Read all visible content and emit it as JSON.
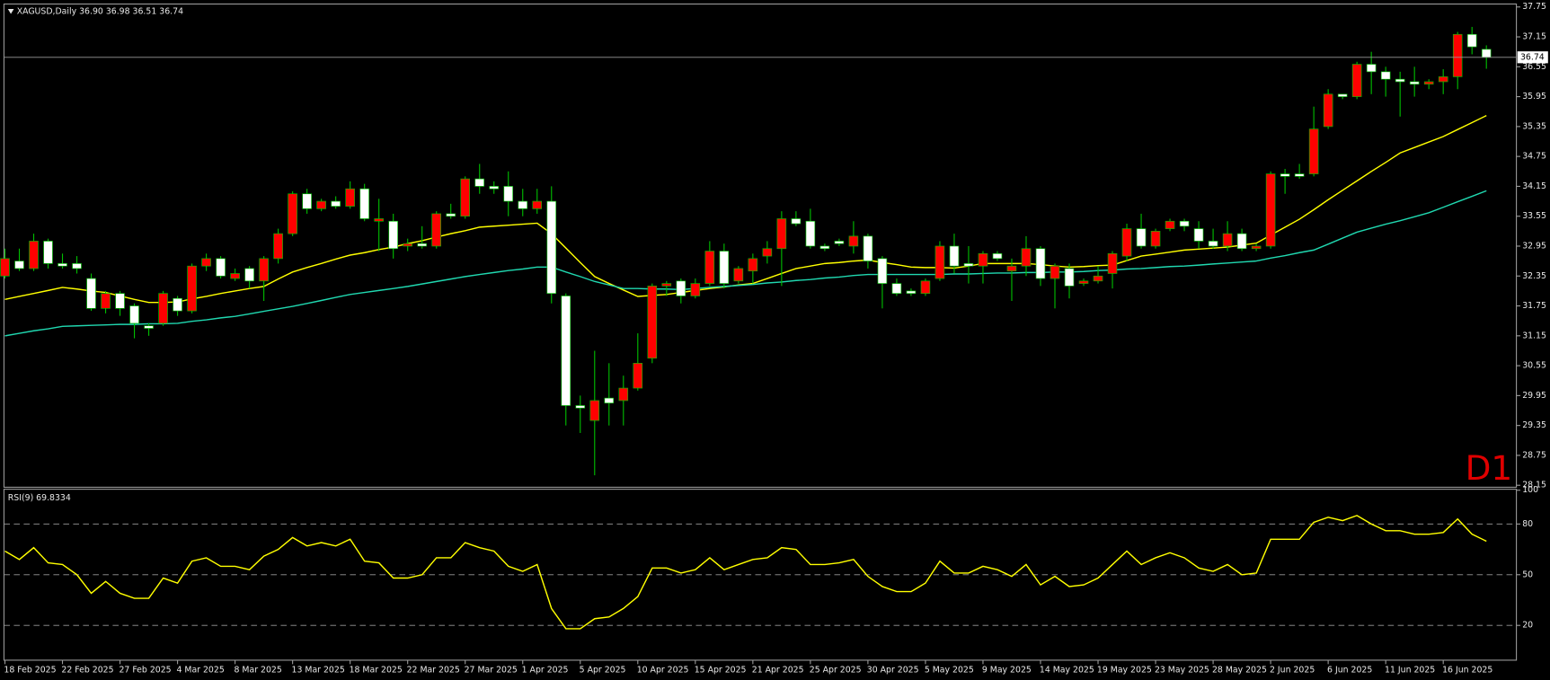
{
  "chart_data": [
    {
      "type": "candlestick",
      "title": "XAGUSD,Daily  36.90 36.98 36.51 36.74",
      "annotation": "D1",
      "up_color": "#ff0000",
      "down_color": "#ffffff",
      "wick_color": "#00c000",
      "categories": [
        "18 Feb 2025",
        null,
        null,
        null,
        "22 Feb 2025",
        null,
        null,
        null,
        "27 Feb 2025",
        null,
        null,
        null,
        "4 Mar 2025",
        null,
        null,
        null,
        "8 Mar 2025",
        null,
        null,
        null,
        "13 Mar 2025",
        null,
        null,
        null,
        "18 Mar 2025",
        null,
        null,
        null,
        "22 Mar 2025",
        null,
        null,
        null,
        "27 Mar 2025",
        null,
        null,
        null,
        "1 Apr 2025",
        null,
        null,
        null,
        "5 Apr 2025",
        null,
        null,
        null,
        "10 Apr 2025",
        null,
        null,
        null,
        "15 Apr 2025",
        null,
        null,
        null,
        "21 Apr 2025",
        null,
        null,
        null,
        "25 Apr 2025",
        null,
        null,
        null,
        "30 Apr 2025",
        null,
        null,
        null,
        "5 May 2025",
        null,
        null,
        null,
        "9 May 2025",
        null,
        null,
        null,
        "14 May 2025",
        null,
        null,
        null,
        "19 May 2025",
        null,
        null,
        null,
        "23 May 2025",
        null,
        null,
        null,
        "28 May 2025",
        null,
        null,
        null,
        "2 Jun 2025",
        null,
        null,
        null,
        "6 Jun 2025",
        null,
        null,
        null,
        "11 Jun 2025",
        null,
        null,
        null,
        "16 Jun 2025",
        null,
        null,
        null
      ],
      "open": [
        32.35,
        32.65,
        32.5,
        33.05,
        32.6,
        32.6,
        32.3,
        31.7,
        32.0,
        31.75,
        31.35,
        31.4,
        31.9,
        31.65,
        32.55,
        32.7,
        32.3,
        32.5,
        32.25,
        32.7,
        33.2,
        34.0,
        33.7,
        33.85,
        33.75,
        34.1,
        33.45,
        33.45,
        32.95,
        33.0,
        32.95,
        33.6,
        33.55,
        34.3,
        34.15,
        34.15,
        33.85,
        33.7,
        33.85,
        31.95,
        29.75,
        29.45,
        29.9,
        29.85,
        30.1,
        30.7,
        32.15,
        32.25,
        31.95,
        32.2,
        32.85,
        32.25,
        32.45,
        32.75,
        32.9,
        33.5,
        33.45,
        32.95,
        33.05,
        32.95,
        33.15,
        32.7,
        32.2,
        32.05,
        32.0,
        32.3,
        32.95,
        32.6,
        32.55,
        32.8,
        32.45,
        32.55,
        32.9,
        32.3,
        32.5,
        32.2,
        32.25,
        32.4,
        32.75,
        33.3,
        32.95,
        33.3,
        33.45,
        33.3,
        33.05,
        32.95,
        33.2,
        32.9,
        32.95,
        34.4,
        34.4,
        34.4,
        35.35,
        36.0,
        35.95,
        36.6,
        36.45,
        36.3,
        36.25,
        36.2,
        36.25,
        36.35,
        37.2,
        36.9
      ],
      "high": [
        32.9,
        32.9,
        33.2,
        33.1,
        32.8,
        32.75,
        32.4,
        32.05,
        32.05,
        31.8,
        31.4,
        32.05,
        31.95,
        32.6,
        32.8,
        32.75,
        32.5,
        32.55,
        32.75,
        33.3,
        34.05,
        34.1,
        33.9,
        33.95,
        34.25,
        34.2,
        33.9,
        33.6,
        33.1,
        33.35,
        33.65,
        33.8,
        34.35,
        34.6,
        34.25,
        34.45,
        34.1,
        34.1,
        34.15,
        32.0,
        29.95,
        30.85,
        30.6,
        30.35,
        31.2,
        32.2,
        32.25,
        32.3,
        32.3,
        33.05,
        33.0,
        32.55,
        32.8,
        33.05,
        33.65,
        33.65,
        33.7,
        33.0,
        33.1,
        33.45,
        33.2,
        32.75,
        32.3,
        32.1,
        32.3,
        33.05,
        33.2,
        32.95,
        32.85,
        32.85,
        32.7,
        33.15,
        32.95,
        32.6,
        32.6,
        32.3,
        32.55,
        32.85,
        33.4,
        33.6,
        33.3,
        33.5,
        33.5,
        33.45,
        33.3,
        33.45,
        33.3,
        33.0,
        34.45,
        34.5,
        34.6,
        35.75,
        36.1,
        36.0,
        36.65,
        36.85,
        36.55,
        36.45,
        36.55,
        36.3,
        36.5,
        37.25,
        37.35,
        36.98
      ],
      "low": [
        32.3,
        32.45,
        32.45,
        32.5,
        32.5,
        32.4,
        31.65,
        31.6,
        31.55,
        31.1,
        31.15,
        31.35,
        31.55,
        31.6,
        32.45,
        32.3,
        32.25,
        32.1,
        31.85,
        32.6,
        33.15,
        33.6,
        33.65,
        33.7,
        33.7,
        33.45,
        32.85,
        32.7,
        32.85,
        32.9,
        32.9,
        33.5,
        33.5,
        34.0,
        34.0,
        33.55,
        33.55,
        33.6,
        31.8,
        29.35,
        29.2,
        28.35,
        29.35,
        29.35,
        30.05,
        30.6,
        31.95,
        31.8,
        31.9,
        32.15,
        32.1,
        32.2,
        32.2,
        32.6,
        32.15,
        33.35,
        32.9,
        32.85,
        32.95,
        32.8,
        32.5,
        31.7,
        31.95,
        31.95,
        31.95,
        32.25,
        32.4,
        32.2,
        32.2,
        32.65,
        31.85,
        32.35,
        32.15,
        31.7,
        31.9,
        32.15,
        32.2,
        32.1,
        32.65,
        32.9,
        32.9,
        33.25,
        33.25,
        32.9,
        32.9,
        32.85,
        32.85,
        32.85,
        32.9,
        34.0,
        34.3,
        34.35,
        35.3,
        35.9,
        35.9,
        36.0,
        35.95,
        35.55,
        35.95,
        36.1,
        36.0,
        36.1,
        36.8,
        36.51
      ],
      "close": [
        32.7,
        32.5,
        33.05,
        32.6,
        32.55,
        32.5,
        31.7,
        32.0,
        31.7,
        31.4,
        31.3,
        32.0,
        31.65,
        32.55,
        32.7,
        32.35,
        32.4,
        32.25,
        32.7,
        33.2,
        34.0,
        33.7,
        33.85,
        33.75,
        34.1,
        33.5,
        33.5,
        32.9,
        33.0,
        32.95,
        33.6,
        33.55,
        34.3,
        34.15,
        34.1,
        33.85,
        33.7,
        33.85,
        32.0,
        29.75,
        29.7,
        29.85,
        29.8,
        30.1,
        30.6,
        32.15,
        32.2,
        31.95,
        32.2,
        32.85,
        32.2,
        32.5,
        32.7,
        32.9,
        33.5,
        33.4,
        32.95,
        32.9,
        33.0,
        33.15,
        32.65,
        32.2,
        32.0,
        32.0,
        32.25,
        32.95,
        32.55,
        32.55,
        32.8,
        32.7,
        32.55,
        32.9,
        32.3,
        32.55,
        32.15,
        32.25,
        32.35,
        32.8,
        33.3,
        32.95,
        33.25,
        33.45,
        33.35,
        33.05,
        32.95,
        33.2,
        32.9,
        32.95,
        34.4,
        34.35,
        34.35,
        35.3,
        36.0,
        35.95,
        36.6,
        36.45,
        36.3,
        36.25,
        36.2,
        36.25,
        36.35,
        37.2,
        36.95,
        36.74
      ],
      "series": [
        {
          "color": "#ffff00",
          "values": [
            31.88,
            31.94,
            32.0,
            32.06,
            32.12,
            32.09,
            32.05,
            32.02,
            31.95,
            31.88,
            31.82,
            31.82,
            31.83,
            31.89,
            31.94,
            32.0,
            32.05,
            32.1,
            32.14,
            32.29,
            32.43,
            32.52,
            32.6,
            32.69,
            32.77,
            32.82,
            32.88,
            32.93,
            33.0,
            33.06,
            33.13,
            33.2,
            33.26,
            33.33,
            33.35,
            33.37,
            33.39,
            33.41,
            33.2,
            32.91,
            32.62,
            32.34,
            32.2,
            32.07,
            31.94,
            31.96,
            31.98,
            32.02,
            32.06,
            32.1,
            32.13,
            32.17,
            32.2,
            32.3,
            32.4,
            32.5,
            32.55,
            32.6,
            32.62,
            32.65,
            32.67,
            32.62,
            32.58,
            32.53,
            32.52,
            32.52,
            32.51,
            32.55,
            32.6,
            32.6,
            32.6,
            32.6,
            32.58,
            32.55,
            32.53,
            32.54,
            32.56,
            32.57,
            32.66,
            32.75,
            32.79,
            32.83,
            32.87,
            32.89,
            32.91,
            32.93,
            32.97,
            33.01,
            33.17,
            33.33,
            33.49,
            33.68,
            33.88,
            34.07,
            34.26,
            34.45,
            34.63,
            34.82,
            34.93,
            35.04,
            35.15,
            35.29,
            35.43,
            35.57
          ]
        },
        {
          "color": "#20d8b0",
          "values": [
            31.15,
            31.2,
            31.25,
            31.29,
            31.34,
            31.35,
            31.36,
            31.37,
            31.38,
            31.38,
            31.39,
            31.39,
            31.4,
            31.44,
            31.47,
            31.51,
            31.54,
            31.59,
            31.64,
            31.69,
            31.74,
            31.8,
            31.86,
            31.92,
            31.98,
            32.02,
            32.06,
            32.1,
            32.14,
            32.19,
            32.24,
            32.29,
            32.34,
            32.38,
            32.42,
            32.46,
            32.49,
            32.53,
            32.53,
            32.43,
            32.34,
            32.24,
            32.17,
            32.1,
            32.1,
            32.09,
            32.09,
            32.08,
            32.1,
            32.12,
            32.14,
            32.16,
            32.18,
            32.21,
            32.23,
            32.26,
            32.28,
            32.31,
            32.33,
            32.36,
            32.38,
            32.38,
            32.38,
            32.38,
            32.38,
            32.38,
            32.39,
            32.39,
            32.4,
            32.41,
            32.41,
            32.42,
            32.42,
            32.43,
            32.43,
            32.44,
            32.46,
            32.47,
            32.49,
            32.5,
            32.52,
            32.54,
            32.55,
            32.57,
            32.59,
            32.61,
            32.63,
            32.65,
            32.71,
            32.76,
            32.82,
            32.87,
            32.99,
            33.11,
            33.23,
            33.31,
            33.39,
            33.46,
            33.54,
            33.62,
            33.73,
            33.84,
            33.95,
            34.06
          ]
        }
      ],
      "last_price": 36.74,
      "ylim": [
        28.15,
        37.75
      ],
      "yticks": [
        37.75,
        37.15,
        36.55,
        35.95,
        35.35,
        34.75,
        34.15,
        33.55,
        32.95,
        32.35,
        31.75,
        31.15,
        30.55,
        29.95,
        29.35,
        28.75,
        28.15
      ]
    },
    {
      "type": "line",
      "title": "RSI(9) 69.8334",
      "series": [
        {
          "color": "#ffff00",
          "values": [
            64,
            59,
            66,
            57,
            56,
            50,
            39,
            46,
            39,
            36,
            36,
            48,
            45,
            58,
            60,
            55,
            55,
            53,
            61,
            65,
            72,
            67,
            69,
            67,
            71,
            58,
            57,
            48,
            48,
            50,
            60,
            60,
            69,
            66,
            64,
            55,
            52,
            56,
            30,
            18,
            18,
            24,
            25,
            30,
            37,
            54,
            54,
            51,
            53,
            60,
            53,
            56,
            59,
            60,
            66,
            65,
            56,
            56,
            57,
            59,
            49,
            43,
            40,
            40,
            45,
            58,
            51,
            51,
            55,
            53,
            49,
            56,
            44,
            49,
            43,
            44,
            48,
            56,
            64,
            56,
            60,
            63,
            60,
            54,
            52,
            56,
            50,
            51,
            71,
            71,
            71,
            81,
            84,
            82,
            85,
            80,
            76,
            76,
            74,
            74,
            75,
            83,
            74,
            69.83
          ]
        }
      ],
      "levels": [
        20,
        50,
        80
      ],
      "ylim": [
        0,
        100
      ],
      "yticks": [
        100,
        80,
        50,
        20
      ]
    }
  ]
}
